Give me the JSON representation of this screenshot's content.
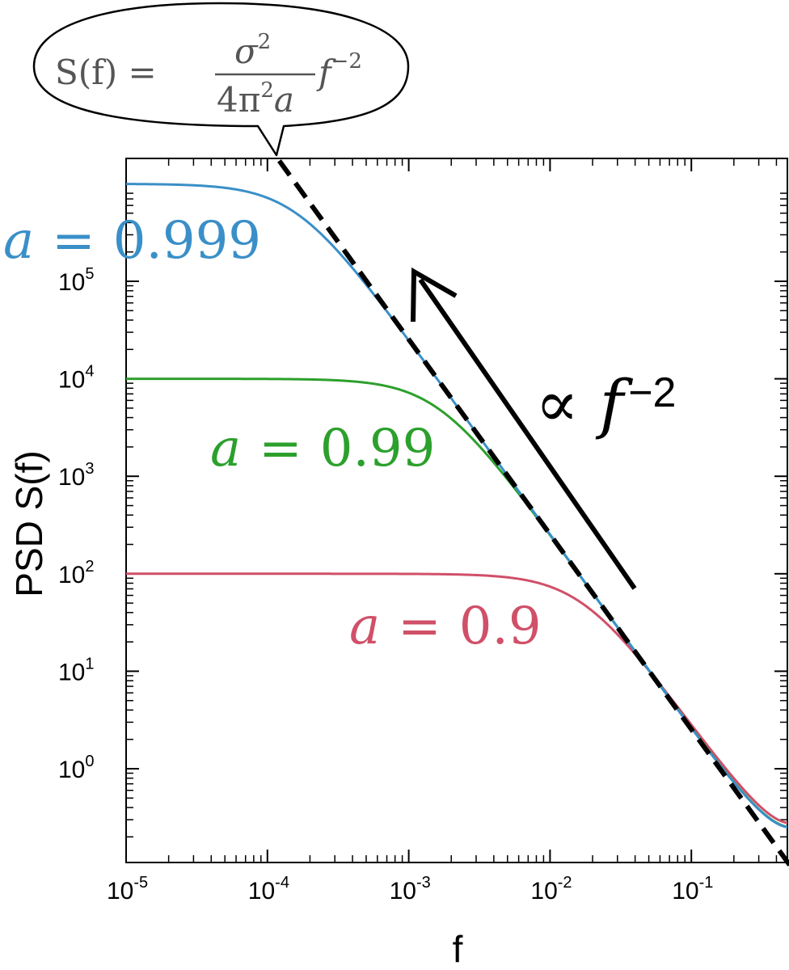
{
  "chart_data": {
    "type": "line",
    "xlabel": "f",
    "ylabel": "PSD S(f)",
    "x_scale": "log",
    "y_scale": "log",
    "xlim": [
      1e-05,
      0.5
    ],
    "ylim": [
      0.05,
      800000
    ],
    "grid": false,
    "x_ticks": [
      {
        "value": 1e-05,
        "base": "10",
        "exp": "-5"
      },
      {
        "value": 0.0001,
        "base": "10",
        "exp": "-4"
      },
      {
        "value": 0.001,
        "base": "10",
        "exp": "-3"
      },
      {
        "value": 0.01,
        "base": "10",
        "exp": "-2"
      },
      {
        "value": 0.1,
        "base": "10",
        "exp": "-1"
      }
    ],
    "y_ticks": [
      {
        "value": 1,
        "base": "10",
        "exp": "0"
      },
      {
        "value": 10,
        "base": "10",
        "exp": "1"
      },
      {
        "value": 100,
        "base": "10",
        "exp": "2"
      },
      {
        "value": 1000,
        "base": "10",
        "exp": "3"
      },
      {
        "value": 10000,
        "base": "10",
        "exp": "4"
      },
      {
        "value": 100000,
        "base": "10",
        "exp": "5"
      }
    ],
    "series": [
      {
        "name": "a = 0.9",
        "a": 0.9,
        "color": "#d05068",
        "x": [
          1e-05,
          0.0001,
          0.001,
          0.005,
          0.01,
          0.02,
          0.05,
          0.1,
          0.2,
          0.3,
          0.5
        ],
        "values": [
          100,
          99.9,
          99.3,
          84.5,
          57.9,
          25.6,
          4.91,
          1.31,
          0.419,
          0.284,
          0.277
        ]
      },
      {
        "name": "a = 0.99",
        "a": 0.99,
        "color": "#2ca02c",
        "x": [
          1e-05,
          0.0001,
          0.001,
          0.005,
          0.01,
          0.02,
          0.05,
          0.1,
          0.2,
          0.3,
          0.5
        ],
        "values": [
          10000,
          9961,
          7200,
          915,
          247,
          63.1,
          10.3,
          2.63,
          0.726,
          0.364,
          0.255
        ]
      },
      {
        "name": "a = 0.999",
        "a": 0.999,
        "color": "#3a8fc8",
        "x": [
          1e-05,
          0.0001,
          0.001,
          0.005,
          0.01,
          0.02,
          0.05,
          0.1,
          0.2,
          0.3,
          0.5
        ],
        "values": [
          996000,
          720000,
          25000,
          1010,
          253,
          63.4,
          10.2,
          2.63,
          0.726,
          0.364,
          0.251
        ]
      }
    ],
    "asymptote": {
      "formula": "S(f) = σ²/(4π²a) f⁻²",
      "style": "dashed",
      "color": "#000000",
      "coefficient": 0.02536
    },
    "annotations": {
      "slope_label_main": "∝ f",
      "slope_label_exp": "−2",
      "labels": [
        {
          "var": "a",
          "eq": "=",
          "num": "0.999",
          "series": 2
        },
        {
          "var": "a",
          "eq": "=",
          "num": "0.99",
          "series": 1
        },
        {
          "var": "a",
          "eq": "=",
          "num": "0.9",
          "series": 0
        }
      ],
      "bubble": {
        "lhs": "S(f) =",
        "numerator": "σ",
        "numerator_exp": "2",
        "den_a": "4π",
        "den_exp": "2",
        "den_b": "a",
        "tail": "f",
        "tail_exp": "−2"
      }
    }
  }
}
